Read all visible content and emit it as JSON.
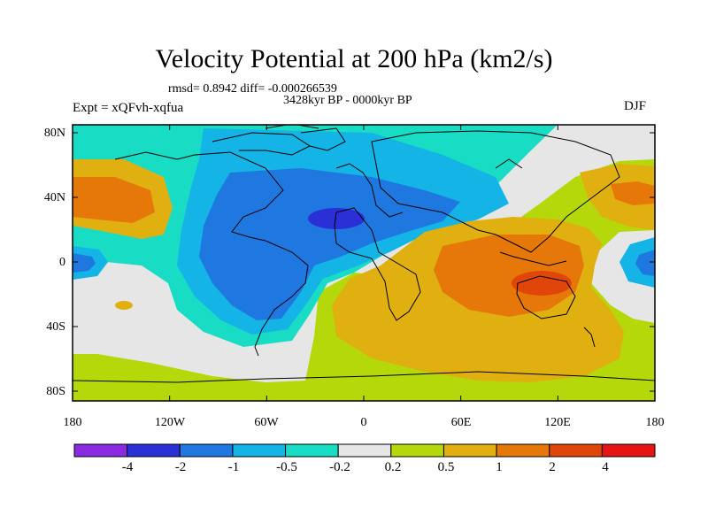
{
  "title": "Velocity Potential at 200 hPa (km2/s)",
  "stats_line": "rmsd= 0.8942 diff= -0.000266539",
  "period": "3428kyr BP - 0000kyr BP",
  "experiment": "Expt = xQFvh-xqfua",
  "season": "DJF",
  "axes": {
    "x_ticks": [
      "180",
      "120W",
      "60W",
      "0",
      "60E",
      "120E",
      "180"
    ],
    "y_ticks": [
      "80N",
      "40N",
      "0",
      "40S",
      "80S"
    ]
  },
  "colorbar": {
    "colors": [
      "#8a2be2",
      "#2b2fd6",
      "#1e78e0",
      "#14b4e6",
      "#18dcc4",
      "#e6e6e6",
      "#b4d80a",
      "#e0b010",
      "#e6780a",
      "#e0460a",
      "#e61414"
    ],
    "labels": [
      "-4",
      "-2",
      "-1",
      "-0.5",
      "-0.2",
      "0.2",
      "0.5",
      "1",
      "2",
      "4"
    ]
  }
}
